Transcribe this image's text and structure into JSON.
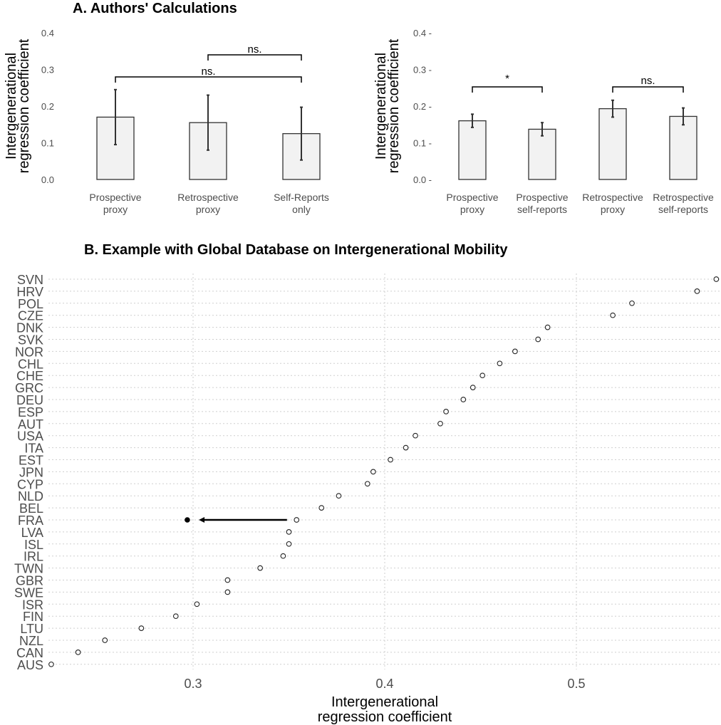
{
  "panel_a_title": "A. Authors' Calculations",
  "panel_b_title": "B. Example with Global Database on Intergenerational Mobility",
  "chart_data": [
    {
      "type": "bar",
      "ylabel_line1": "Intergenerational",
      "ylabel_line2": "regression coefficient",
      "ylim": [
        0,
        0.4
      ],
      "yticks": [
        "0.0",
        "0.1",
        "0.2",
        "0.3",
        "0.4"
      ],
      "categories": [
        {
          "line1": "Prospective",
          "line2": "proxy"
        },
        {
          "line1": "Retrospective",
          "line2": "proxy"
        },
        {
          "line1": "Self-Reports",
          "line2": "only"
        }
      ],
      "values": [
        0.17,
        0.155,
        0.125
      ],
      "error_low": [
        0.095,
        0.08,
        0.053
      ],
      "error_high": [
        0.245,
        0.23,
        0.197
      ],
      "brackets": [
        {
          "from": 1,
          "to": 2,
          "label": "ns."
        },
        {
          "from": 0,
          "to": 2,
          "label": "ns."
        }
      ],
      "bar_fill": "#f2f2f2"
    },
    {
      "type": "bar",
      "ylabel_line1": "Intergenerational",
      "ylabel_line2": "regression coefficient",
      "ylim": [
        0,
        0.4
      ],
      "yticks": [
        "0.0 -",
        "0.1 -",
        "0.2 -",
        "0.3 -",
        "0.4 -"
      ],
      "categories": [
        {
          "line1": "Prospective",
          "line2": "proxy"
        },
        {
          "line1": "Prospective",
          "line2": "self-reports"
        },
        {
          "line1": "Retrospective",
          "line2": "proxy"
        },
        {
          "line1": "Retrospective",
          "line2": "self-reports"
        }
      ],
      "values": [
        0.16,
        0.137,
        0.193,
        0.172
      ],
      "error_low": [
        0.142,
        0.119,
        0.17,
        0.149
      ],
      "error_high": [
        0.178,
        0.155,
        0.216,
        0.195
      ],
      "brackets": [
        {
          "from": 0,
          "to": 1,
          "label": "*"
        },
        {
          "from": 2,
          "to": 3,
          "label": "ns."
        }
      ],
      "bar_fill": "#f2f2f2"
    },
    {
      "type": "scatter",
      "xlabel_line1": "Intergenerational",
      "xlabel_line2": "regression coefficient",
      "xlim": [
        0.225,
        0.575
      ],
      "xticks": [
        0.3,
        0.4,
        0.5
      ],
      "xtick_labels": [
        "0.3",
        "0.4",
        "0.5"
      ],
      "grid": true,
      "points": [
        {
          "country": "SVN",
          "value": 0.573
        },
        {
          "country": "HRV",
          "value": 0.563
        },
        {
          "country": "POL",
          "value": 0.529
        },
        {
          "country": "CZE",
          "value": 0.519
        },
        {
          "country": "DNK",
          "value": 0.485
        },
        {
          "country": "SVK",
          "value": 0.48
        },
        {
          "country": "NOR",
          "value": 0.468
        },
        {
          "country": "CHL",
          "value": 0.46
        },
        {
          "country": "CHE",
          "value": 0.451
        },
        {
          "country": "GRC",
          "value": 0.446
        },
        {
          "country": "DEU",
          "value": 0.441
        },
        {
          "country": "ESP",
          "value": 0.432
        },
        {
          "country": "AUT",
          "value": 0.429
        },
        {
          "country": "USA",
          "value": 0.416
        },
        {
          "country": "ITA",
          "value": 0.411
        },
        {
          "country": "EST",
          "value": 0.403
        },
        {
          "country": "JPN",
          "value": 0.394
        },
        {
          "country": "CYP",
          "value": 0.391
        },
        {
          "country": "NLD",
          "value": 0.376
        },
        {
          "country": "BEL",
          "value": 0.367
        },
        {
          "country": "FRA",
          "value": 0.354
        },
        {
          "country": "LVA",
          "value": 0.35
        },
        {
          "country": "ISL",
          "value": 0.35
        },
        {
          "country": "IRL",
          "value": 0.347
        },
        {
          "country": "TWN",
          "value": 0.335
        },
        {
          "country": "GBR",
          "value": 0.318
        },
        {
          "country": "SWE",
          "value": 0.318
        },
        {
          "country": "ISR",
          "value": 0.302
        },
        {
          "country": "FIN",
          "value": 0.291
        },
        {
          "country": "LTU",
          "value": 0.273
        },
        {
          "country": "NZL",
          "value": 0.254
        },
        {
          "country": "CAN",
          "value": 0.24
        },
        {
          "country": "AUS",
          "value": 0.226
        }
      ],
      "highlight": {
        "country": "FRA",
        "from": 0.349,
        "to": 0.303,
        "point": 0.297
      }
    }
  ]
}
